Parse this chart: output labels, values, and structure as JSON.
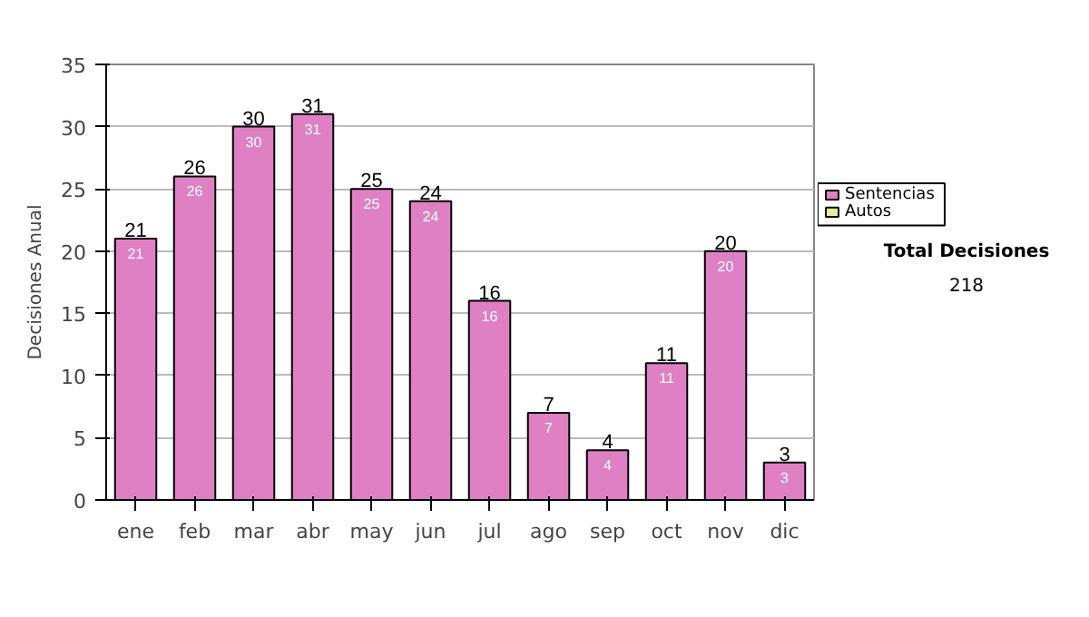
{
  "chart_data": {
    "type": "bar",
    "ylabel": "Decisiones Anual",
    "categories": [
      "ene",
      "feb",
      "mar",
      "abr",
      "may",
      "jun",
      "jul",
      "ago",
      "sep",
      "oct",
      "nov",
      "dic"
    ],
    "series": [
      {
        "name": "Sentencias",
        "color": "#df80c4",
        "values": [
          21,
          26,
          30,
          31,
          25,
          24,
          16,
          7,
          4,
          11,
          20,
          3
        ]
      },
      {
        "name": "Autos",
        "color": "#e6eca0",
        "values": [
          null,
          null,
          null,
          null,
          null,
          null,
          null,
          null,
          null,
          null,
          null,
          null
        ]
      }
    ],
    "stacked": true,
    "data_labels": true,
    "totals": [
      "21",
      "26",
      "30",
      "31",
      "25",
      "24",
      "16",
      "7",
      "4",
      "11",
      "20",
      "3"
    ],
    "ylim": [
      0,
      35
    ],
    "yticks": [
      0,
      5,
      10,
      15,
      20,
      25,
      30,
      35
    ],
    "grid": "y",
    "legend": "right",
    "annotations": [
      "Total Decisiones",
      "218"
    ]
  }
}
